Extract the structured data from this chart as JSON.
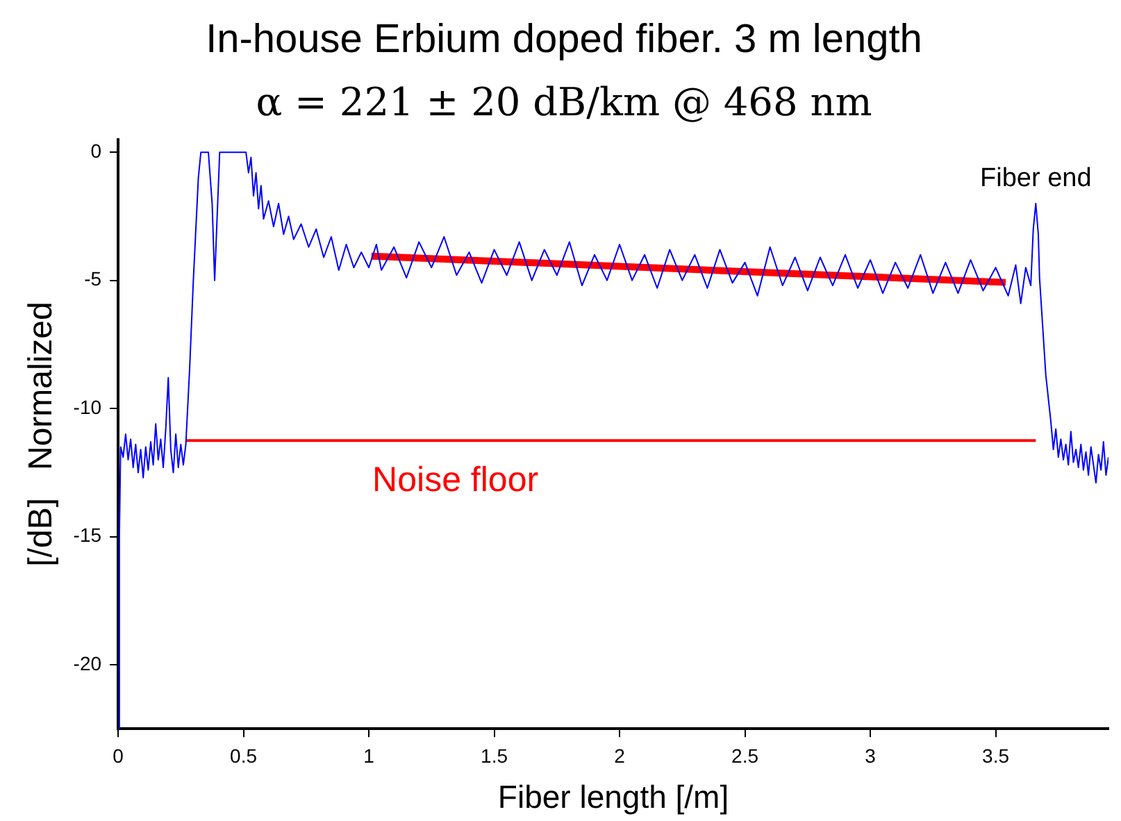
{
  "chart_data": {
    "type": "line",
    "title": "In-house Erbium doped fiber. 3 m length",
    "subtitle": "α = 221 ± 20 dB/km @ 468 nm",
    "xlabel": "Fiber length [/m]",
    "ylabel": "[/dB]   Normalized",
    "xlim": [
      0,
      3.95
    ],
    "xticks": [
      0,
      0.5,
      1,
      1.5,
      2,
      2.5,
      3,
      3.5
    ],
    "ylim": [
      -22.5,
      0.5
    ],
    "yticks": [
      0,
      -5,
      -10,
      -15,
      -20
    ],
    "grid": false,
    "legend": false,
    "series": [
      {
        "color": "#0000ff",
        "x": [
          0,
          0.005,
          0.01,
          0.02,
          0.03,
          0.04,
          0.05,
          0.06,
          0.07,
          0.08,
          0.09,
          0.1,
          0.11,
          0.12,
          0.13,
          0.14,
          0.15,
          0.16,
          0.17,
          0.18,
          0.19,
          0.2,
          0.21,
          0.22,
          0.23,
          0.24,
          0.25,
          0.26,
          0.27,
          0.285,
          0.3,
          0.31,
          0.32,
          0.33,
          0.36,
          0.375,
          0.385,
          0.395,
          0.405,
          0.51,
          0.52,
          0.53,
          0.54,
          0.55,
          0.56,
          0.57,
          0.58,
          0.6,
          0.62,
          0.64,
          0.66,
          0.68,
          0.7,
          0.73,
          0.76,
          0.79,
          0.82,
          0.85,
          0.88,
          0.91,
          0.94,
          0.97,
          1,
          1.03,
          1.05,
          1.1,
          1.15,
          1.2,
          1.25,
          1.3,
          1.35,
          1.4,
          1.45,
          1.5,
          1.55,
          1.6,
          1.65,
          1.7,
          1.75,
          1.8,
          1.85,
          1.9,
          1.95,
          2,
          2.05,
          2.1,
          2.15,
          2.2,
          2.25,
          2.3,
          2.35,
          2.4,
          2.45,
          2.5,
          2.55,
          2.6,
          2.65,
          2.7,
          2.75,
          2.8,
          2.85,
          2.9,
          2.95,
          3,
          3.05,
          3.1,
          3.15,
          3.2,
          3.25,
          3.3,
          3.35,
          3.4,
          3.45,
          3.5,
          3.55,
          3.58,
          3.6,
          3.62,
          3.64,
          3.65,
          3.66,
          3.67,
          3.675,
          3.7,
          3.72,
          3.73,
          3.74,
          3.75,
          3.76,
          3.77,
          3.78,
          3.79,
          3.8,
          3.81,
          3.82,
          3.83,
          3.84,
          3.85,
          3.86,
          3.87,
          3.88,
          3.89,
          3.9,
          3.91,
          3.92,
          3.93,
          3.94,
          3.95
        ],
        "values": [
          -22.5,
          -15,
          -11.5,
          -11.9,
          -11,
          -12,
          -11.2,
          -12.3,
          -11.4,
          -12.5,
          -11.6,
          -12.7,
          -11.5,
          -12.4,
          -11.3,
          -12.2,
          -10.6,
          -12,
          -11.2,
          -12.3,
          -10.8,
          -8.8,
          -11.6,
          -12.5,
          -11,
          -12.3,
          -11.4,
          -12.2,
          -11.4,
          -8.5,
          -5,
          -3,
          -1,
          0,
          0,
          -2,
          -5,
          -2.5,
          0,
          0,
          -0.8,
          -0.2,
          -1.7,
          -0.8,
          -2.2,
          -1.3,
          -2.6,
          -1.9,
          -2.9,
          -2,
          -3.2,
          -2.5,
          -3.4,
          -2.8,
          -3.7,
          -3,
          -4.1,
          -3.3,
          -4.6,
          -3.6,
          -4.5,
          -3.9,
          -4.5,
          -3.6,
          -4.6,
          -3.7,
          -4.9,
          -3.5,
          -4.5,
          -3.3,
          -4.8,
          -3.9,
          -5.1,
          -3.8,
          -4.8,
          -3.5,
          -5,
          -3.8,
          -4.8,
          -3.5,
          -5.2,
          -4,
          -5,
          -3.6,
          -5,
          -4,
          -5.3,
          -3.8,
          -5,
          -4,
          -5.3,
          -3.8,
          -5.1,
          -4.3,
          -5.6,
          -3.7,
          -5.2,
          -4.1,
          -5.4,
          -4.1,
          -5.2,
          -4,
          -5.3,
          -4.2,
          -5.5,
          -4.3,
          -5.3,
          -4,
          -5.5,
          -4.3,
          -5.5,
          -4.2,
          -5.4,
          -4.5,
          -5.6,
          -4.4,
          -5.9,
          -4.5,
          -5.2,
          -3,
          -2,
          -3.2,
          -4.9,
          -8.7,
          -10.5,
          -11.6,
          -10.8,
          -11.9,
          -11.2,
          -12,
          -11.4,
          -12.2,
          -10.9,
          -12.1,
          -11.6,
          -12.3,
          -11.4,
          -12.4,
          -11.7,
          -12.6,
          -11.5,
          -12.2,
          -12.9,
          -11.8,
          -12.4,
          -11.3,
          -12.6,
          -11.9
        ]
      },
      {
        "color": "#ff0000",
        "x": [
          1.01,
          3.54
        ],
        "values": [
          -4.05,
          -5.08
        ]
      },
      {
        "color": "#ff0000",
        "x": [
          0.27,
          3.66
        ],
        "values": [
          -11.25,
          -11.25
        ]
      }
    ],
    "annotations": [
      {
        "text": "Noise floor",
        "x": 1.345,
        "y": -11.25
      },
      {
        "text": "Fiber end",
        "x": 3.66,
        "y": -2
      }
    ]
  }
}
